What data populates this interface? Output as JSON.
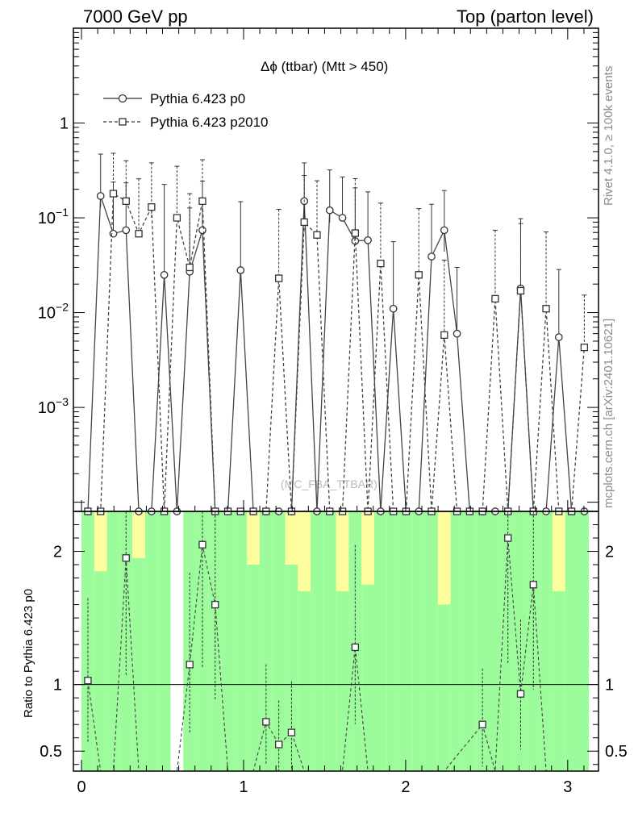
{
  "header": {
    "left": "7000 GeV pp",
    "right": "Top (parton level)"
  },
  "side_labels": {
    "rivet": "Rivet 4.1.0, ≥ 100k events",
    "mcplots": "mcplots.cern.ch [arXiv:2401.10621]"
  },
  "watermark": "(MC_FBA_TTBAR)",
  "chart_data": {
    "type": "line",
    "title": "Δϕ (ttbar) (Mtt > 450)",
    "yscale": "log",
    "ylim": [
      8e-05,
      10
    ],
    "xlim": [
      -0.05,
      3.19
    ],
    "ytick_labels": [
      {
        "value": 1,
        "base": "1",
        "exp": ""
      },
      {
        "value": 0.1,
        "base": "10",
        "exp": "−1"
      },
      {
        "value": 0.01,
        "base": "10",
        "exp": "−2"
      },
      {
        "value": 0.001,
        "base": "10",
        "exp": "−3"
      }
    ],
    "legend": [
      "Pythia 6.423 p0",
      "Pythia 6.423 p2010"
    ],
    "x": [
      0.0393,
      0.1178,
      0.1963,
      0.2749,
      0.3534,
      0.432,
      0.5105,
      0.589,
      0.6676,
      0.7461,
      0.8247,
      0.9032,
      0.9817,
      1.0603,
      1.1388,
      1.2174,
      1.2959,
      1.3744,
      1.453,
      1.5315,
      1.6101,
      1.6886,
      1.7671,
      1.8457,
      1.9242,
      2.0028,
      2.0813,
      2.1598,
      2.2384,
      2.3169,
      2.3955,
      2.474,
      2.5525,
      2.6311,
      2.7096,
      2.7882,
      2.8667,
      2.9452,
      3.0238,
      3.1023
    ],
    "series": [
      {
        "name": "Pythia 6.423 p0",
        "marker": "circle",
        "line": "solid",
        "values": [
          0,
          0.17,
          0.068,
          0.074,
          0,
          0,
          0.025,
          0,
          0.027,
          0.074,
          0,
          0,
          0.028,
          0,
          0,
          0,
          0,
          0.15,
          0,
          0.12,
          0.1,
          0.057,
          0.058,
          0,
          0.011,
          0,
          0,
          0.039,
          0.074,
          0.006,
          0,
          0,
          0,
          0,
          0.018,
          0,
          0,
          0.0055,
          0,
          0
        ],
        "err_hi": [
          0,
          0.3,
          0.17,
          0.16,
          0,
          0,
          0.2,
          0,
          0.1,
          0.17,
          0,
          0,
          0.12,
          0,
          0,
          0,
          0,
          0.23,
          0,
          0.2,
          0.17,
          0.15,
          0.13,
          0,
          0.045,
          0,
          0,
          0.1,
          0.12,
          0.024,
          0,
          0,
          0,
          0,
          0.08,
          0,
          0,
          0.023,
          0,
          0
        ],
        "err_lo": [
          0,
          0.04,
          0.0002,
          0.001,
          0,
          0,
          0.0001,
          0,
          0.0001,
          0.001,
          0,
          0,
          0.0001,
          0,
          0,
          0,
          0,
          0.06,
          0,
          0.03,
          0.0003,
          0.0001,
          0.001,
          0,
          0.0001,
          0,
          0,
          0.0002,
          0.03,
          0.0001,
          0,
          0,
          0,
          0,
          0.0001,
          0,
          0,
          0.0001,
          0,
          0
        ]
      },
      {
        "name": "Pythia 6.423 p2010",
        "marker": "square",
        "line": "dashed",
        "values": [
          0,
          0,
          0.18,
          0.15,
          0.068,
          0.13,
          0,
          0.1,
          0.03,
          0.15,
          0,
          0,
          0,
          0,
          0,
          0.023,
          0,
          0.09,
          0.066,
          0,
          0,
          0.069,
          0,
          0.033,
          0,
          0,
          0.025,
          0,
          0.0058,
          0,
          0,
          0,
          0.014,
          0,
          0.017,
          0,
          0.011,
          0,
          0,
          0.0043
        ],
        "err_hi": [
          0,
          0,
          0.3,
          0.25,
          0.19,
          0.25,
          0,
          0.25,
          0.15,
          0.26,
          0,
          0,
          0,
          0,
          0,
          0.1,
          0,
          0.19,
          0.18,
          0,
          0,
          0.19,
          0,
          0.11,
          0,
          0,
          0.1,
          0,
          0.03,
          0,
          0,
          0,
          0.06,
          0,
          0.07,
          0,
          0.06,
          0,
          0,
          0.011
        ],
        "err_lo": [
          0,
          0,
          0.08,
          0.01,
          0.0001,
          0.03,
          0,
          0.0003,
          0.0001,
          0.03,
          0,
          0,
          0,
          0,
          0,
          0.0001,
          0,
          0.02,
          0.0001,
          0,
          0,
          0.0001,
          0,
          0.0001,
          0,
          0,
          0.0001,
          0,
          0.0001,
          0,
          0,
          0,
          0.0001,
          0,
          0.0001,
          0,
          0.0001,
          0,
          0,
          0.0001
        ]
      }
    ],
    "ratio": {
      "ylabel": "Ratio to Pythia 6.423 p0",
      "ylim": [
        0.35,
        2.3
      ],
      "ytick_labels": [
        "2",
        "1",
        "0.5"
      ],
      "ytick_values": [
        2,
        1,
        0.5
      ],
      "xtick_labels": [
        "0",
        "1",
        "2",
        "3"
      ],
      "xtick_values": [
        0,
        1,
        2,
        3
      ],
      "band_yellow_hi": [
        2.3,
        1.85,
        2.3,
        2.3,
        1.95,
        2.3,
        2.3,
        null,
        2.3,
        2.3,
        2.3,
        2.3,
        2.3,
        1.9,
        2.3,
        2.3,
        1.9,
        1.7,
        2.3,
        2.3,
        1.7,
        2.3,
        1.75,
        2.3,
        2.3,
        2.3,
        2.3,
        2.3,
        1.6,
        2.3,
        2.3,
        2.3,
        2.3,
        2.3,
        2.3,
        2.3,
        2.3,
        1.7,
        2.3,
        2.3
      ],
      "band_green_hi": [
        2.3,
        2.3,
        2.3,
        2.3,
        2.3,
        2.3,
        2.3,
        null,
        2.3,
        2.3,
        2.3,
        2.3,
        2.3,
        2.3,
        2.3,
        2.3,
        2.3,
        2.3,
        2.3,
        2.3,
        2.3,
        2.3,
        2.3,
        2.3,
        2.3,
        2.3,
        2.3,
        2.3,
        2.3,
        2.3,
        2.3,
        2.3,
        2.3,
        2.3,
        2.3,
        2.3,
        2.3,
        2.3,
        2.3,
        2.3
      ],
      "ratio_values": [
        1.03,
        null,
        null,
        1.95,
        null,
        null,
        null,
        null,
        1.15,
        2.05,
        1.6,
        null,
        null,
        null,
        0.72,
        0.55,
        0.64,
        null,
        null,
        null,
        null,
        1.28,
        null,
        null,
        null,
        null,
        null,
        null,
        null,
        0.7,
        null,
        2.1,
        0.93,
        1.75,
        null,
        null,
        null,
        null,
        null,
        null
      ],
      "ratio_x": [
        0.0393,
        0.1178,
        0.1963,
        0.2749,
        0.3534,
        0.432,
        0.5105,
        0.589,
        0.6676,
        0.7461,
        0.8247,
        0.9032,
        0.9817,
        1.0603,
        1.1388,
        1.2174,
        1.2959,
        1.3744,
        1.453,
        1.5315,
        1.6101,
        1.6886,
        1.7671,
        1.8457,
        1.9242,
        2.0028,
        2.0813,
        2.1598,
        2.2384,
        2.474,
        2.5525,
        2.6311,
        2.7096,
        2.7882,
        2.8667,
        2.9452,
        3.0238,
        3.1023,
        3.15,
        3.18
      ]
    }
  }
}
